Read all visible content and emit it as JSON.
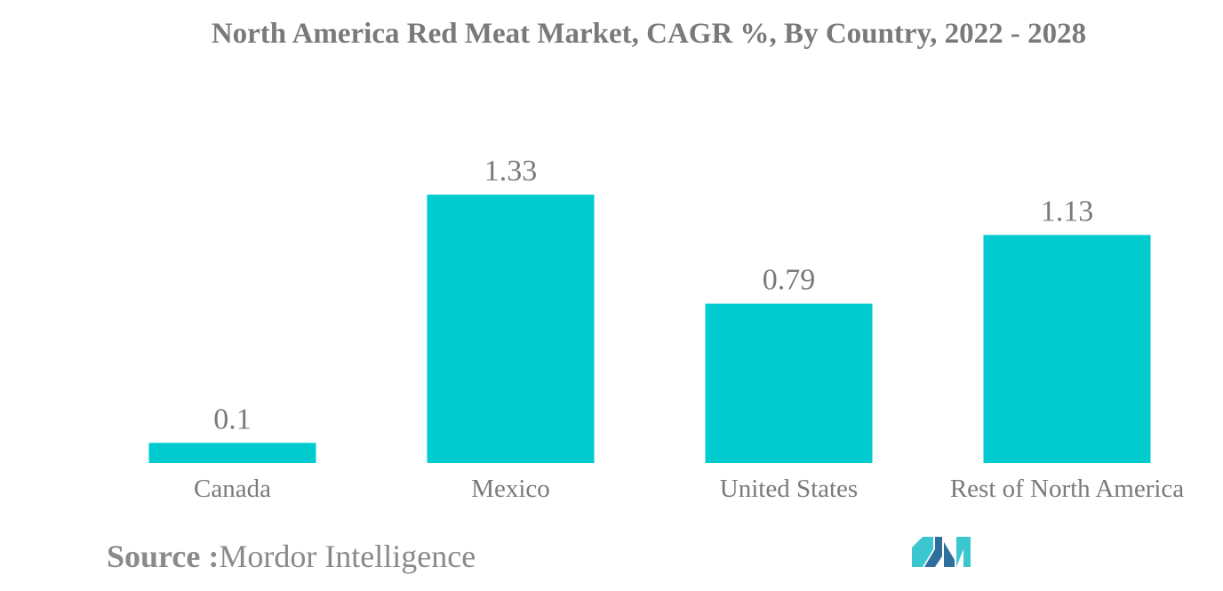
{
  "colors": {
    "bar": "#00cccf",
    "text": "#7a7a7a",
    "logo_dark": "#2e6f9e",
    "logo_light": "#3cc7d0"
  },
  "source": {
    "label": "Source :",
    "value": "Mordor Intelligence"
  },
  "logo": {
    "icon": "mordor-intelligence-logo"
  },
  "chart_data": {
    "type": "bar",
    "title": "North America Red Meat Market, CAGR %, By Country, 2022 - 2028",
    "xlabel": "",
    "ylabel": "",
    "categories": [
      "Canada",
      "Mexico",
      "United States",
      "Rest of North America"
    ],
    "values": [
      0.1,
      1.33,
      0.79,
      1.13
    ],
    "data_labels": [
      "0.1",
      "1.33",
      "0.79",
      "1.13"
    ],
    "ylim": [
      0,
      1.33
    ],
    "grid": false,
    "legend": "none"
  }
}
